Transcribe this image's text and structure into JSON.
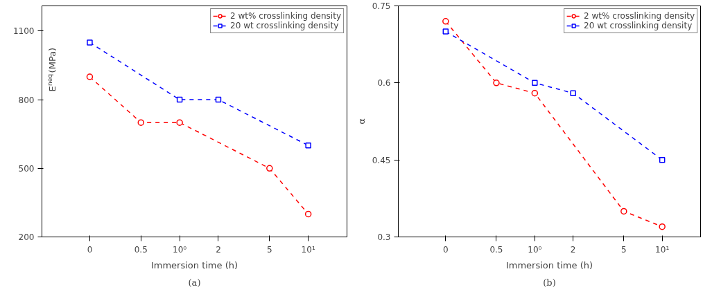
{
  "chart_data": [
    {
      "type": "line",
      "annotations": [
        "(a)"
      ],
      "xlabel": "Immersion time (h)",
      "ylabel": "E$^{neq}$(MPa)",
      "log": "x",
      "xlim": [
        0.085,
        20
      ],
      "xticks": [
        {
          "value": 0.2,
          "label": "0"
        },
        0.5,
        {
          "value": 1,
          "label": "10⁰"
        },
        2,
        5,
        {
          "value": 10,
          "label": "10¹"
        }
      ],
      "ylim": [
        200,
        1210
      ],
      "yticks": [
        200,
        500,
        800,
        1100
      ],
      "grid": false,
      "legend": "top right",
      "line_style": "dashed",
      "series": [
        {
          "name": "2 wt% crosslinking density",
          "color": "#ff0000",
          "marker": "circle",
          "x": [
            0.2,
            0.5,
            1,
            5,
            10
          ],
          "values": [
            900,
            700,
            700,
            500,
            300
          ]
        },
        {
          "name": "20 wt crosslinking density",
          "color": "#0000ff",
          "marker": "square",
          "x": [
            0.2,
            1,
            2,
            10
          ],
          "values": [
            1050,
            800,
            800,
            600
          ]
        }
      ]
    },
    {
      "type": "line",
      "annotations": [
        "(b)"
      ],
      "xlabel": "Immersion time (h)",
      "ylabel": "α",
      "log": "x",
      "xlim": [
        0.085,
        20
      ],
      "xticks": [
        {
          "value": 0.2,
          "label": "0"
        },
        0.5,
        {
          "value": 1,
          "label": "10⁰"
        },
        2,
        5,
        {
          "value": 10,
          "label": "10¹"
        }
      ],
      "ylim": [
        0.3,
        0.75
      ],
      "yticks": [
        0.3,
        0.45,
        0.6,
        0.75
      ],
      "grid": false,
      "legend": "top right",
      "line_style": "dashed",
      "series": [
        {
          "name": "2 wt% crosslinking density",
          "color": "#ff0000",
          "marker": "circle",
          "x": [
            0.2,
            0.5,
            1,
            5,
            10
          ],
          "values": [
            0.72,
            0.6,
            0.58,
            0.35,
            0.32
          ]
        },
        {
          "name": "20 wt crosslinking density",
          "color": "#0000ff",
          "marker": "square",
          "x": [
            0.2,
            1,
            2,
            10
          ],
          "values": [
            0.7,
            0.6,
            0.58,
            0.45
          ]
        }
      ]
    }
  ]
}
